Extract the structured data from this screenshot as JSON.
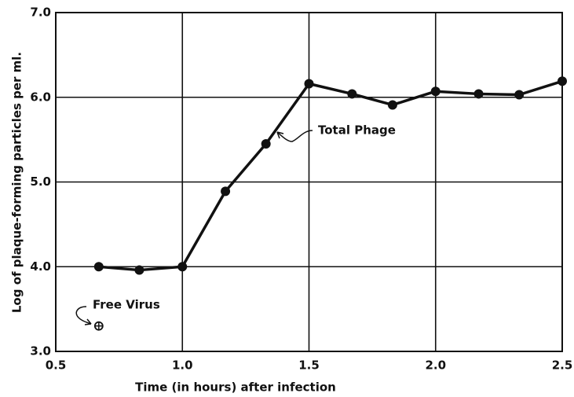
{
  "chart_data": {
    "type": "line",
    "xlabel": "Time (in hours) after infection",
    "ylabel": "Log of plaque-forming particles per ml.",
    "xlim": [
      0.5,
      2.5
    ],
    "ylim": [
      3.0,
      7.0
    ],
    "xticks": [
      0.5,
      {
        "value": 1.0,
        "label": "1.0"
      },
      1.5,
      {
        "value": 2.0,
        "label": "2.0"
      },
      2.5
    ],
    "yticks": [
      {
        "value": 3.0,
        "label": "3.0"
      },
      {
        "value": 4.0,
        "label": "4.0"
      },
      {
        "value": 5.0,
        "label": "5.0"
      },
      {
        "value": 6.0,
        "label": "6.0"
      },
      {
        "value": 7.0,
        "label": "7.0"
      }
    ],
    "grid": true,
    "series": [
      {
        "name": "Total Phage",
        "color": "#111111",
        "x": [
          0.67,
          0.83,
          1.0,
          1.17,
          1.33,
          1.5,
          1.67,
          1.83,
          2.0,
          2.17,
          2.33,
          2.5
        ],
        "values": [
          4.0,
          3.96,
          4.0,
          4.89,
          5.45,
          6.16,
          6.04,
          5.91,
          6.07,
          6.04,
          6.03,
          6.19
        ]
      },
      {
        "name": "Free Virus",
        "color": "#111111",
        "x": [
          0.67
        ],
        "values": [
          3.3
        ]
      }
    ]
  }
}
